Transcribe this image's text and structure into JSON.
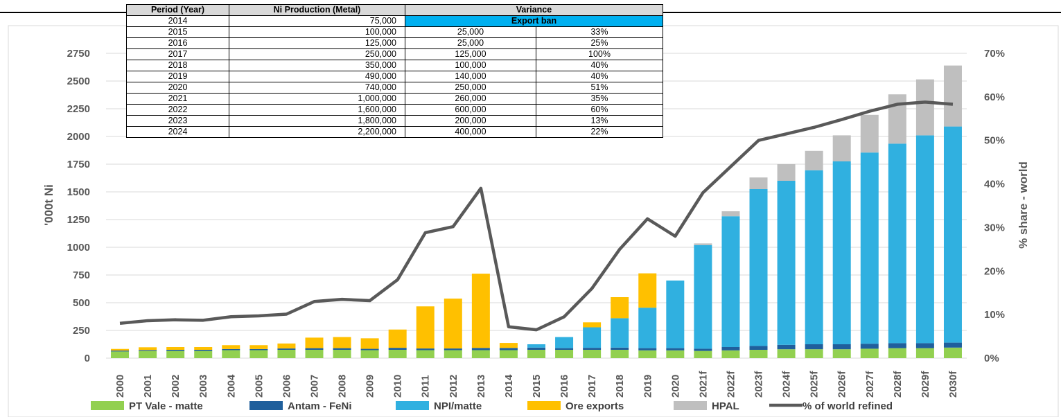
{
  "chart_data": {
    "type": "bar",
    "stacked": true,
    "categories": [
      "2000",
      "2001",
      "2002",
      "2003",
      "2004",
      "2005",
      "2006",
      "2007",
      "2008",
      "2009",
      "2010",
      "2011",
      "2012",
      "2013",
      "2014",
      "2015",
      "2016",
      "2017",
      "2018",
      "2019",
      "2020",
      "2021f",
      "2022f",
      "2023f",
      "2024f",
      "2025f",
      "2026f",
      "2027f",
      "2028f",
      "2029f",
      "2030f"
    ],
    "ylabel": "'000t Ni",
    "y2label": "% share - world",
    "ylim": [
      0,
      2750
    ],
    "y2lim": [
      0,
      0.7
    ],
    "yticks": [
      "0",
      "250",
      "500",
      "750",
      "1000",
      "1250",
      "1500",
      "1750",
      "2000",
      "2250",
      "2500",
      "2750"
    ],
    "y2ticks": [
      "0%",
      "10%",
      "20%",
      "30%",
      "40%",
      "50%",
      "60%",
      "70%"
    ],
    "grid": true,
    "legend_position": "bottom",
    "series": [
      {
        "name": "PT Vale - matte",
        "color": "#92d050",
        "values": [
          60,
          65,
          65,
          65,
          72,
          72,
          75,
          75,
          75,
          72,
          75,
          72,
          72,
          72,
          72,
          75,
          75,
          75,
          75,
          70,
          70,
          65,
          70,
          75,
          80,
          80,
          80,
          85,
          90,
          90,
          95
        ]
      },
      {
        "name": "Antam - FeNi",
        "color": "#1f5f9c",
        "values": [
          8,
          8,
          10,
          10,
          10,
          10,
          12,
          15,
          15,
          12,
          18,
          15,
          15,
          20,
          20,
          20,
          15,
          18,
          20,
          20,
          20,
          20,
          30,
          35,
          40,
          45,
          45,
          45,
          45,
          45,
          45
        ]
      },
      {
        "name": "NPI/matte",
        "color": "#30b0e0",
        "values": [
          0,
          0,
          0,
          0,
          0,
          0,
          0,
          0,
          0,
          0,
          0,
          0,
          0,
          0,
          0,
          30,
          100,
          185,
          265,
          365,
          610,
          935,
          1180,
          1415,
          1480,
          1570,
          1650,
          1725,
          1800,
          1875,
          1950
        ]
      },
      {
        "name": "Ore exports",
        "color": "#ffc000",
        "values": [
          15,
          25,
          25,
          25,
          35,
          35,
          45,
          95,
          100,
          95,
          165,
          380,
          450,
          670,
          45,
          0,
          0,
          45,
          190,
          310,
          0,
          0,
          0,
          0,
          0,
          0,
          0,
          0,
          0,
          0,
          0
        ]
      },
      {
        "name": "HPAL",
        "color": "#bfbfbf",
        "values": [
          0,
          0,
          0,
          0,
          0,
          0,
          0,
          0,
          0,
          0,
          0,
          0,
          0,
          0,
          0,
          0,
          0,
          0,
          0,
          0,
          0,
          15,
          45,
          105,
          150,
          175,
          235,
          340,
          445,
          505,
          550
        ]
      }
    ],
    "line": {
      "name": "% of world refined",
      "color": "#595959",
      "values": [
        0.08,
        0.086,
        0.088,
        0.087,
        0.095,
        0.097,
        0.101,
        0.13,
        0.135,
        0.132,
        0.18,
        0.288,
        0.302,
        0.39,
        0.072,
        0.065,
        0.095,
        0.16,
        0.25,
        0.32,
        0.28,
        0.38,
        0.44,
        0.5,
        0.515,
        0.53,
        0.548,
        0.567,
        0.583,
        0.588,
        0.583
      ]
    }
  },
  "table": {
    "headers": [
      "Period (Year)",
      "Ni Production (Metal)",
      "Variance"
    ],
    "first_row": {
      "year": "2014",
      "production": "75,000",
      "note": "Export ban"
    },
    "rows": [
      {
        "year": "2015",
        "production": "100,000",
        "variance": "25,000",
        "pct": "33%"
      },
      {
        "year": "2016",
        "production": "125,000",
        "variance": "25,000",
        "pct": "25%"
      },
      {
        "year": "2017",
        "production": "250,000",
        "variance": "125,000",
        "pct": "100%"
      },
      {
        "year": "2018",
        "production": "350,000",
        "variance": "100,000",
        "pct": "40%"
      },
      {
        "year": "2019",
        "production": "490,000",
        "variance": "140,000",
        "pct": "40%"
      },
      {
        "year": "2020",
        "production": "740,000",
        "variance": "250,000",
        "pct": "51%"
      },
      {
        "year": "2021",
        "production": "1,000,000",
        "variance": "260,000",
        "pct": "35%"
      },
      {
        "year": "2022",
        "production": "1,600,000",
        "variance": "600,000",
        "pct": "60%"
      },
      {
        "year": "2023",
        "production": "1,800,000",
        "variance": "200,000",
        "pct": "13%"
      },
      {
        "year": "2024",
        "production": "2,200,000",
        "variance": "400,000",
        "pct": "22%"
      }
    ]
  }
}
